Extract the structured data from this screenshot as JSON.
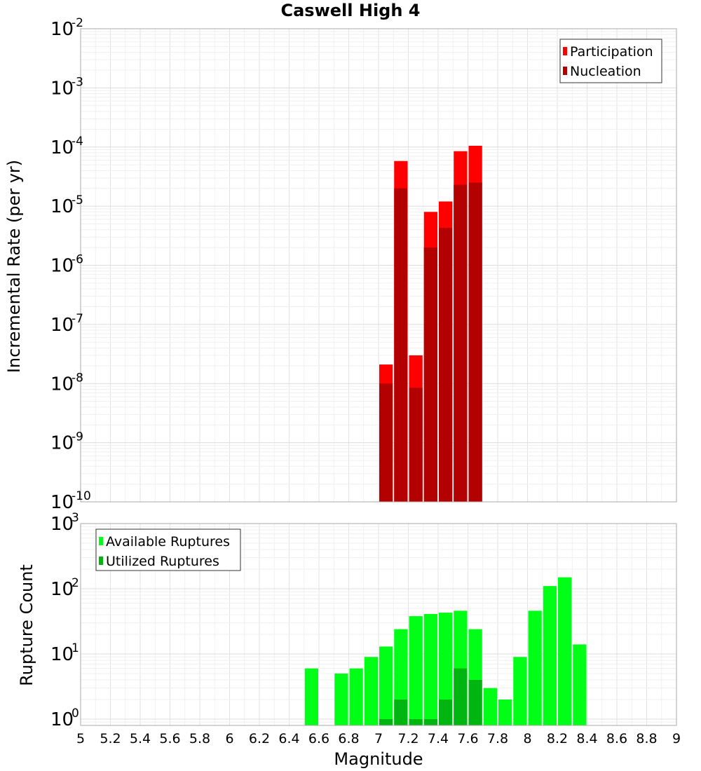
{
  "chart_data": [
    {
      "type": "bar",
      "title": "Caswell High 4",
      "ylabel": "Incremental Rate (per yr)",
      "yscale": "log",
      "xlim": [
        5,
        9
      ],
      "ylim": [
        1e-10,
        0.01
      ],
      "grid": true,
      "legend_position": "top-right",
      "bar_width": 0.1,
      "y_ticks": [
        {
          "base": "10",
          "exp": "-10"
        },
        {
          "base": "10",
          "exp": "-9"
        },
        {
          "base": "10",
          "exp": "-8"
        },
        {
          "base": "10",
          "exp": "-7"
        },
        {
          "base": "10",
          "exp": "-6"
        },
        {
          "base": "10",
          "exp": "-5"
        },
        {
          "base": "10",
          "exp": "-4"
        },
        {
          "base": "10",
          "exp": "-3"
        },
        {
          "base": "10",
          "exp": "-2"
        }
      ],
      "series": [
        {
          "name": "Participation",
          "color": "#ff0000",
          "x": [
            7.05,
            7.15,
            7.25,
            7.35,
            7.45,
            7.55,
            7.65
          ],
          "values": [
            2.1e-08,
            5.8e-05,
            3e-08,
            8e-06,
            1.2e-05,
            8.5e-05,
            0.000105
          ]
        },
        {
          "name": "Nucleation",
          "color": "#b30000",
          "x": [
            7.05,
            7.15,
            7.25,
            7.35,
            7.45,
            7.55,
            7.65
          ],
          "values": [
            1e-08,
            2e-05,
            8.5e-09,
            2e-06,
            4.3e-06,
            2.3e-05,
            2.5e-05
          ]
        }
      ]
    },
    {
      "type": "bar",
      "xlabel": "Magnitude",
      "ylabel": "Rupture Count",
      "yscale": "log",
      "xlim": [
        5,
        9
      ],
      "ylim": [
        0.8,
        1000
      ],
      "grid": true,
      "legend_position": "top-left",
      "bar_width": 0.1,
      "x_tick_labels": [
        "5",
        "5.2",
        "5.4",
        "5.6",
        "5.8",
        "6",
        "6.2",
        "6.4",
        "6.6",
        "6.8",
        "7",
        "7.2",
        "7.4",
        "7.6",
        "7.8",
        "8",
        "8.2",
        "8.4",
        "8.6",
        "8.8",
        "9"
      ],
      "y_ticks": [
        {
          "base": "10",
          "exp": "0"
        },
        {
          "base": "10",
          "exp": "1"
        },
        {
          "base": "10",
          "exp": "2"
        },
        {
          "base": "10",
          "exp": "3"
        }
      ],
      "series": [
        {
          "name": "Available Ruptures",
          "color": "#00ff16",
          "x": [
            6.55,
            6.75,
            6.85,
            6.95,
            7.05,
            7.15,
            7.25,
            7.35,
            7.45,
            7.55,
            7.65,
            7.75,
            7.85,
            7.95,
            8.05,
            8.15,
            8.25,
            8.35
          ],
          "values": [
            6,
            5,
            6,
            9,
            13,
            24,
            38,
            41,
            43,
            46,
            24,
            3,
            2,
            9,
            46,
            110,
            150,
            14
          ]
        },
        {
          "name": "Utilized Ruptures",
          "color": "#00b50f",
          "x": [
            7.05,
            7.15,
            7.25,
            7.35,
            7.45,
            7.55,
            7.65
          ],
          "values": [
            1,
            2,
            1,
            1,
            2,
            6,
            4
          ]
        }
      ]
    }
  ]
}
